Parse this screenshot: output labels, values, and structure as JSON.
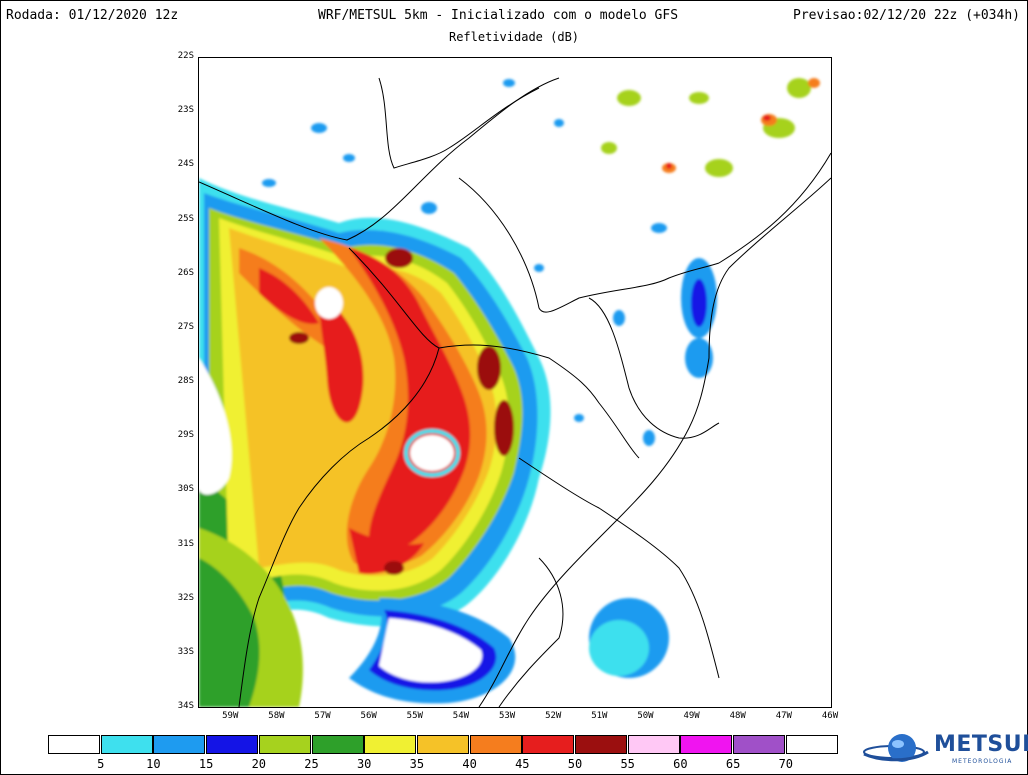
{
  "header": {
    "run": "Rodada: 01/12/2020 12z",
    "model": "WRF/METSUL 5km - Inicializado com o modelo GFS",
    "forecast": "Previsao:02/12/20 22z (+034h)",
    "variable": "Refletividade (dB)"
  },
  "map": {
    "lon_range": [
      -59.7,
      -46
    ],
    "lat_range": [
      -34,
      -22
    ],
    "lat_ticks": [
      "22S",
      "23S",
      "24S",
      "25S",
      "26S",
      "27S",
      "28S",
      "29S",
      "30S",
      "31S",
      "32S",
      "33S",
      "34S"
    ],
    "lon_ticks": [
      "59W",
      "58W",
      "57W",
      "56W",
      "55W",
      "54W",
      "53W",
      "52W",
      "51W",
      "50W",
      "49W",
      "48W",
      "47W",
      "46W"
    ]
  },
  "colorbar": {
    "colors": [
      "#ffffff",
      "#3ee0ee",
      "#1e9bf0",
      "#1414e6",
      "#a6d21e",
      "#2ea02a",
      "#f0f032",
      "#f5c228",
      "#f57d1e",
      "#e61e1e",
      "#9b0f0f",
      "#ffc8f5",
      "#f014f0",
      "#a050c8",
      "#ffffff"
    ],
    "labels": [
      "5",
      "10",
      "15",
      "20",
      "25",
      "30",
      "35",
      "40",
      "45",
      "50",
      "55",
      "60",
      "65",
      "70"
    ]
  },
  "brand": {
    "name": "METSUL",
    "tagline": "METEOROLOGIA",
    "color": "#1f4f9a"
  }
}
